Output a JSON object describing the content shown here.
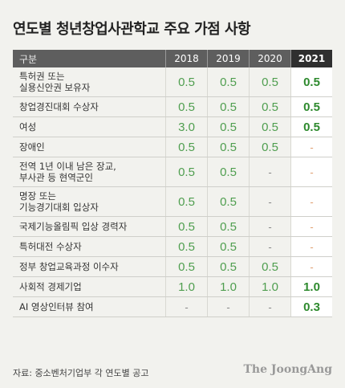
{
  "title": "연도별 청년창업사관학교 주요 가점 사항",
  "header": {
    "label": "구분",
    "years": [
      "2018",
      "2019",
      "2020",
      "2021"
    ]
  },
  "rows": [
    {
      "label": "특허권 또는\n실용신안권 보유자",
      "values": [
        "0.5",
        "0.5",
        "0.5",
        "0.5"
      ]
    },
    {
      "label": "창업경진대회 수상자",
      "values": [
        "0.5",
        "0.5",
        "0.5",
        "0.5"
      ]
    },
    {
      "label": "여성",
      "values": [
        "3.0",
        "0.5",
        "0.5",
        "0.5"
      ]
    },
    {
      "label": "장애인",
      "values": [
        "0.5",
        "0.5",
        "0.5",
        "-"
      ]
    },
    {
      "label": "전역 1년 이내 남은 장교,\n부사관 등 현역군인",
      "values": [
        "0.5",
        "0.5",
        "-",
        "-"
      ]
    },
    {
      "label": "명장 또는\n기능경기대회 입상자",
      "values": [
        "0.5",
        "0.5",
        "-",
        "-"
      ]
    },
    {
      "label": "국제기능올림픽 입상 경력자",
      "values": [
        "0.5",
        "0.5",
        "-",
        "-"
      ]
    },
    {
      "label": "특허대전 수상자",
      "values": [
        "0.5",
        "0.5",
        "-",
        "-"
      ]
    },
    {
      "label": "정부 창업교육과정 이수자",
      "values": [
        "0.5",
        "0.5",
        "0.5",
        "-"
      ]
    },
    {
      "label": "사회적 경제기업",
      "values": [
        "1.0",
        "1.0",
        "1.0",
        "1.0"
      ]
    },
    {
      "label": "AI 영상인터뷰 참여",
      "values": [
        "-",
        "-",
        "-",
        "0.3"
      ]
    }
  ],
  "chart_data": {
    "type": "table",
    "columns": [
      "2018",
      "2019",
      "2020",
      "2021"
    ],
    "rows": [
      {
        "name": "특허권 또는 실용신안권 보유자",
        "values": [
          0.5,
          0.5,
          0.5,
          0.5
        ]
      },
      {
        "name": "창업경진대회 수상자",
        "values": [
          0.5,
          0.5,
          0.5,
          0.5
        ]
      },
      {
        "name": "여성",
        "values": [
          3.0,
          0.5,
          0.5,
          0.5
        ]
      },
      {
        "name": "장애인",
        "values": [
          0.5,
          0.5,
          0.5,
          null
        ]
      },
      {
        "name": "전역 1년 이내 남은 장교, 부사관 등 현역군인",
        "values": [
          0.5,
          0.5,
          null,
          null
        ]
      },
      {
        "name": "명장 또는 기능경기대회 입상자",
        "values": [
          0.5,
          0.5,
          null,
          null
        ]
      },
      {
        "name": "국제기능올림픽 입상 경력자",
        "values": [
          0.5,
          0.5,
          null,
          null
        ]
      },
      {
        "name": "특허대전 수상자",
        "values": [
          0.5,
          0.5,
          null,
          null
        ]
      },
      {
        "name": "정부 창업교육과정 이수자",
        "values": [
          0.5,
          0.5,
          0.5,
          null
        ]
      },
      {
        "name": "사회적 경제기업",
        "values": [
          1.0,
          1.0,
          1.0,
          1.0
        ]
      },
      {
        "name": "AI 영상인터뷰 참여",
        "values": [
          null,
          null,
          null,
          0.3
        ]
      }
    ]
  },
  "source": "자료: 중소벤처기업부 각 연도별 공고",
  "brand": "The JoongAng",
  "colors": {
    "value": "#4f9e4f",
    "value_2021": "#2e8a2e",
    "header_bg": "#5e5e5e",
    "header_2021_bg": "#2f2f2f",
    "background": "#f2f2ee"
  }
}
